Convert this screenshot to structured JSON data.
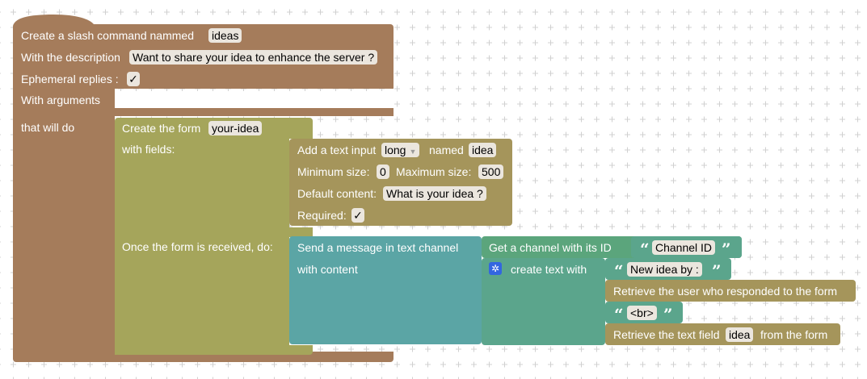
{
  "slash": {
    "title_prefix": "Create a slash command nammed",
    "name": "ideas",
    "description_label": "With the description",
    "description": "Want to share your idea to enhance the server ?",
    "ephemeral_label": "Ephemeral replies :",
    "ephemeral_value": "✓",
    "arguments_label": "With arguments",
    "do_label": "that will do"
  },
  "form": {
    "create_label": "Create the form",
    "form_name": "your-idea",
    "fields_label": "with fields:",
    "received_label": "Once the form is received, do:"
  },
  "text_input": {
    "add_label": "Add a text input",
    "style": "long",
    "named_label": "named",
    "name": "idea",
    "min_label": "Minimum size:",
    "min": "0",
    "max_label": "Maximum size:",
    "max": "500",
    "default_label": "Default content:",
    "default": "What is your idea ?",
    "required_label": "Required:",
    "required_value": "✓"
  },
  "send": {
    "label": "Send a message in text channel",
    "content_label": "with content",
    "channel_label": "Get a channel with its ID",
    "channel_id": "Channel ID",
    "create_text_label": "create text with",
    "text1": "New idea by :",
    "user_label": "Retrieve the user who responded to the form",
    "text2": "<br>",
    "field_prefix": "Retrieve the text field",
    "field_name": "idea",
    "field_suffix": "from the form",
    "open_quote": "“",
    "close_quote": "”",
    "gear_icon": "gear-icon"
  },
  "colors": {
    "slash_block": "#a57c5b",
    "form_block": "#a5a55b",
    "input_block": "#a5955b",
    "send_block": "#5ba5a5",
    "text_block": "#5ba58c"
  }
}
